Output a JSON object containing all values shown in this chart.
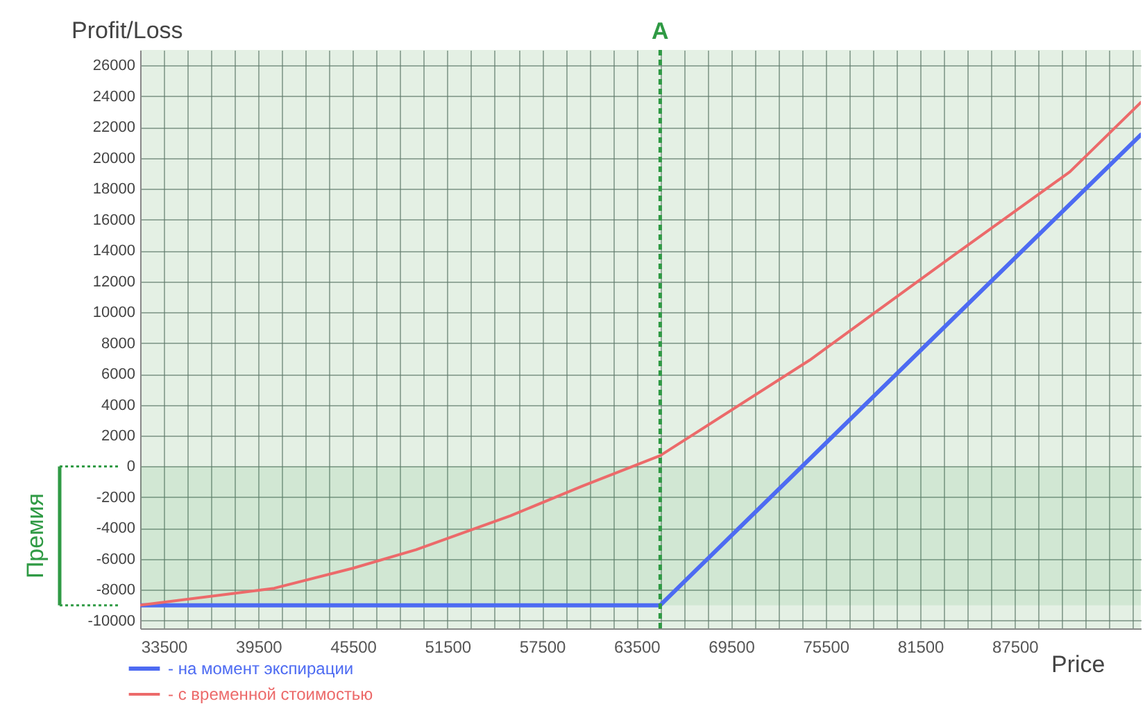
{
  "chart_data": {
    "type": "line",
    "xlabel": "Price",
    "ylabel": "Profit/Loss",
    "xlim": [
      32000,
      95500
    ],
    "ylim": [
      -10500,
      27000
    ],
    "xticks": [
      {
        "value": 32000,
        "label": null
      },
      33500,
      {
        "value": 35000,
        "label": null
      },
      {
        "value": 36500,
        "label": null
      },
      {
        "value": 38000,
        "label": null
      },
      39500,
      {
        "value": 41000,
        "label": null
      },
      {
        "value": 42500,
        "label": null
      },
      {
        "value": 44000,
        "label": null
      },
      45500,
      {
        "value": 47000,
        "label": null
      },
      {
        "value": 48500,
        "label": null
      },
      {
        "value": 50000,
        "label": null
      },
      51500,
      {
        "value": 53000,
        "label": null
      },
      {
        "value": 54500,
        "label": null
      },
      {
        "value": 56000,
        "label": null
      },
      57500,
      {
        "value": 59000,
        "label": null
      },
      {
        "value": 60500,
        "label": null
      },
      {
        "value": 62000,
        "label": null
      },
      63500,
      {
        "value": 65000,
        "label": null
      },
      {
        "value": 66500,
        "label": null
      },
      {
        "value": 68000,
        "label": null
      },
      69500,
      {
        "value": 71000,
        "label": null
      },
      {
        "value": 72500,
        "label": null
      },
      {
        "value": 74000,
        "label": null
      },
      75500,
      {
        "value": 77000,
        "label": null
      },
      {
        "value": 78500,
        "label": null
      },
      {
        "value": 80000,
        "label": null
      },
      81500,
      {
        "value": 83000,
        "label": null
      },
      {
        "value": 84500,
        "label": null
      },
      {
        "value": 86000,
        "label": null
      },
      87500,
      {
        "value": 89000,
        "label": null
      },
      {
        "value": 90500,
        "label": null
      },
      {
        "value": 92000,
        "label": null
      },
      {
        "value": 93500,
        "label": null
      },
      {
        "value": 95000,
        "label": null
      }
    ],
    "yticks": [
      -10000,
      -8000,
      -6000,
      -4000,
      -2000,
      0,
      2000,
      4000,
      6000,
      8000,
      10000,
      12000,
      14000,
      16000,
      18000,
      20000,
      22000,
      24000,
      26000
    ],
    "grid": true,
    "legend": "bottom left",
    "series": [
      {
        "name": "- на момент экспирации",
        "color": "#4d6bf2",
        "x": [
          32000,
          65000,
          95500
        ],
        "values": [
          -9000,
          -9000,
          21500
        ]
      },
      {
        "name": "- с временной стоимостью",
        "color": "#ec6a6a",
        "x": [
          32000,
          40500,
          45500,
          49500,
          55500,
          60000,
          65000,
          74500,
          83500,
          91000,
          95500
        ],
        "values": [
          -9000,
          -7900,
          -6600,
          -5400,
          -3200,
          -1300,
          700,
          6900,
          13600,
          19100,
          23600
        ]
      }
    ],
    "ref_lines": [
      {
        "axis": "x",
        "value": 65000,
        "label": "A",
        "color": "#2f9a44",
        "line_style": "dashed"
      }
    ],
    "bands": [
      {
        "axis": "y",
        "from": -9000,
        "to": 0,
        "label": "Премия",
        "color": "#2f9a44"
      }
    ]
  }
}
